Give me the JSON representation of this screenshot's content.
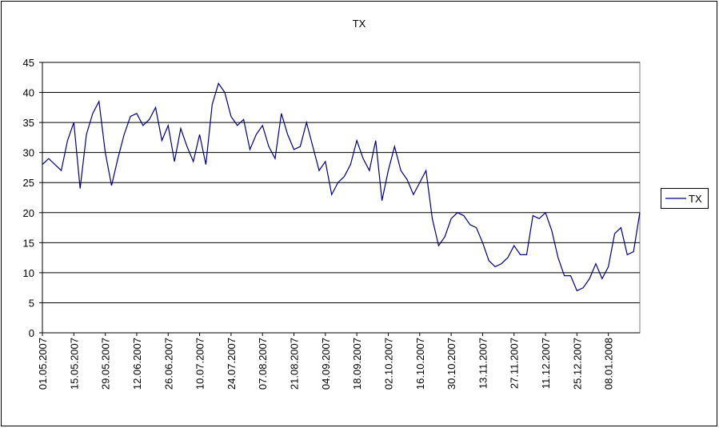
{
  "chart_data": {
    "type": "line",
    "title": "TX",
    "categories": [
      "01.05.2007",
      null,
      null,
      null,
      null,
      "15.05.2007",
      null,
      null,
      null,
      null,
      "29.05.2007",
      null,
      null,
      null,
      null,
      "12.06.2007",
      null,
      null,
      null,
      null,
      "26.06.2007",
      null,
      null,
      null,
      null,
      "10.07.2007",
      null,
      null,
      null,
      null,
      "24.07.2007",
      null,
      null,
      null,
      null,
      "07.08.2007",
      null,
      null,
      null,
      null,
      "21.08.2007",
      null,
      null,
      null,
      null,
      "04.09.2007",
      null,
      null,
      null,
      null,
      "18.09.2007",
      null,
      null,
      null,
      null,
      "02.10.2007",
      null,
      null,
      null,
      null,
      "16.10.2007",
      null,
      null,
      null,
      null,
      "30.10.2007",
      null,
      null,
      null,
      null,
      "13.11.2007",
      null,
      null,
      null,
      null,
      "27.11.2007",
      null,
      null,
      null,
      null,
      "11.12.2007",
      null,
      null,
      null,
      null,
      "25.12.2007",
      null,
      null,
      null,
      null,
      "08.01.2008",
      null,
      null,
      null,
      null,
      null
    ],
    "series": [
      {
        "name": "TX",
        "color": "#000080",
        "values": [
          28,
          29,
          28,
          27,
          32,
          35,
          24,
          33,
          36.5,
          38.5,
          30,
          24.5,
          29,
          33,
          36,
          36.5,
          34.5,
          35.5,
          37.5,
          32,
          34.5,
          28.5,
          34,
          31,
          28.5,
          33,
          28,
          38,
          41.5,
          40,
          36,
          34.5,
          35.5,
          30.5,
          33,
          34.5,
          31,
          29,
          36.5,
          33,
          30.5,
          31,
          35,
          31,
          27,
          28.5,
          23,
          25,
          26,
          28,
          32,
          29,
          27,
          32,
          22,
          27,
          31,
          27,
          25.5,
          23,
          25,
          27,
          19,
          14.5,
          16,
          19,
          20,
          19.5,
          18,
          17.5,
          15,
          12,
          11,
          11.5,
          12.5,
          14.5,
          13,
          13,
          19.5,
          19,
          20,
          17,
          12.5,
          9.5,
          9.5,
          7,
          7.5,
          9,
          11.5,
          9,
          11,
          16.5,
          17.5,
          13,
          13.5,
          20
        ]
      }
    ],
    "ylim": [
      0,
      45
    ],
    "yticks": [
      0,
      5,
      10,
      15,
      20,
      25,
      30,
      35,
      40,
      45
    ],
    "grid": true,
    "legend": "right"
  }
}
